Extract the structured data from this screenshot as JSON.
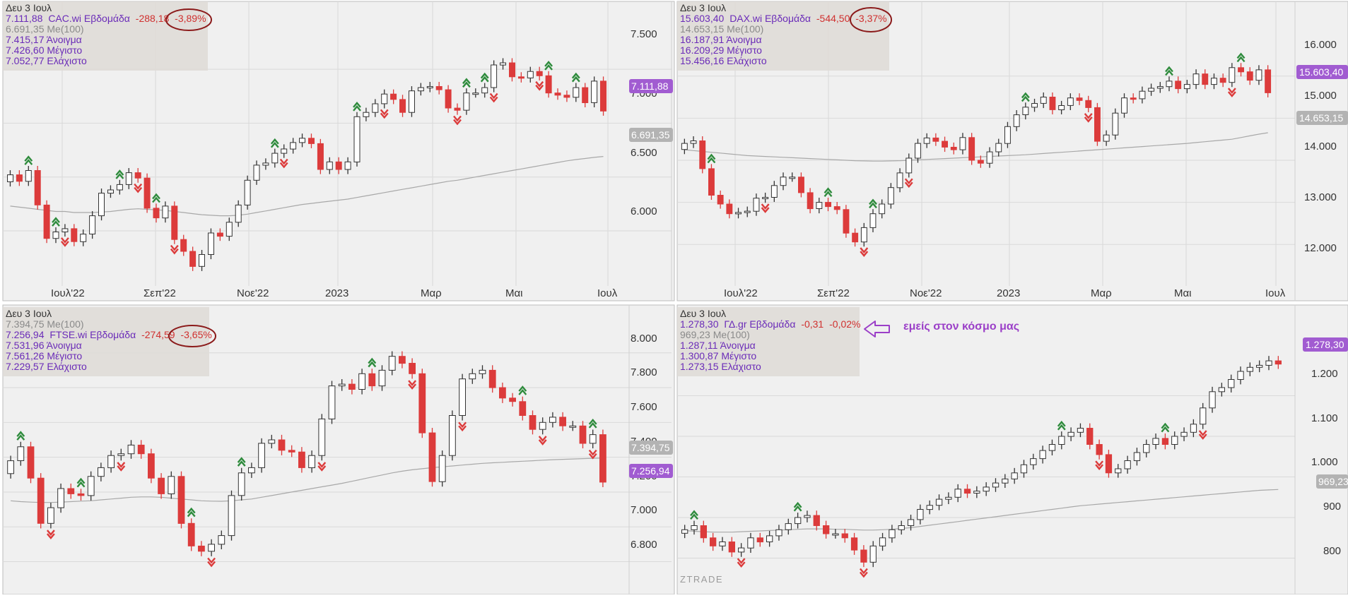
{
  "colors": {
    "background": "#f0f0f0",
    "panel_border": "#bdbdbd",
    "grid": "#d9d9d9",
    "bull": "#ffffff",
    "bear": "#dc3b3b",
    "wick": "#333333",
    "ma_line": "#a8a8a8",
    "price_badge": "#a15cd1",
    "ma_badge": "#b3b3b3",
    "info_text": "#6a2bb8",
    "change_text": "#d0302f",
    "ma_text": "#8a8a8a",
    "circle": "#8b1a1a",
    "signal_up": "#2e8b3c",
    "signal_down": "#dc3b3b",
    "annotation": "#9b3fc8",
    "axis_text": "#333333"
  },
  "xaxis_labels": [
    "Ιουλ'22",
    "Σεπ'22",
    "Νοε'22",
    "2023",
    "Μαρ",
    "Μαι",
    "Ιουλ"
  ],
  "watermark": "ZTRADE",
  "annotation": {
    "text": "εμείς στον κόσμο μας",
    "icon": "arrow-left-icon"
  },
  "chart_data": [
    {
      "type": "candlestick",
      "name": "CAC.wi Εβδομάδα",
      "info": {
        "date": "Δευ 3 Ιουλ",
        "line1_price": "7.111,88",
        "line1_name": "CAC.wi Εβδομάδα",
        "line1_change": "-288,18",
        "line1_pct": "-3,89%",
        "ma": "6.691,35 Me(100)",
        "open": "7.415,17 Άνοιγμα",
        "high": "7.426,60 Μέγιστο",
        "low": "7.052,77 Ελάχιστο"
      },
      "yaxis_ticks": [
        "7.500",
        "7.000",
        "6.500",
        "6.000"
      ],
      "price_badge": "7.111,88",
      "ma_badge": "6.691,35",
      "ylim": [
        5600,
        7750
      ],
      "close": [
        6520,
        6460,
        6560,
        6240,
        5930,
        5990,
        6020,
        5900,
        5970,
        6140,
        6350,
        6380,
        6430,
        6540,
        6490,
        6210,
        6120,
        6230,
        5920,
        5810,
        5670,
        5780,
        5980,
        5950,
        6080,
        6240,
        6470,
        6610,
        6630,
        6720,
        6760,
        6820,
        6860,
        6810,
        6570,
        6640,
        6570,
        6640,
        7060,
        7100,
        7180,
        7270,
        7220,
        7100,
        7300,
        7330,
        7340,
        7310,
        7140,
        7120,
        7280,
        7280,
        7330,
        7540,
        7560,
        7430,
        7420,
        7480,
        7440,
        7280,
        7260,
        7240,
        7330,
        7190,
        7390,
        7112
      ],
      "ma": [
        6230,
        6220,
        6210,
        6200,
        6190,
        6180,
        6180,
        6170,
        6170,
        6170,
        6175,
        6180,
        6190,
        6200,
        6205,
        6200,
        6195,
        6190,
        6180,
        6170,
        6160,
        6150,
        6145,
        6140,
        6140,
        6145,
        6155,
        6170,
        6185,
        6200,
        6215,
        6230,
        6245,
        6255,
        6265,
        6275,
        6285,
        6295,
        6310,
        6325,
        6340,
        6355,
        6370,
        6385,
        6400,
        6415,
        6430,
        6445,
        6460,
        6470,
        6485,
        6500,
        6515,
        6530,
        6545,
        6560,
        6575,
        6590,
        6605,
        6620,
        6635,
        6650,
        6662,
        6672,
        6682,
        6691
      ],
      "signals_up": [
        2,
        5,
        12,
        16,
        29,
        38,
        50,
        52,
        59,
        62
      ],
      "signals_down": [
        6,
        14,
        18,
        30,
        41,
        49,
        53,
        58
      ]
    },
    {
      "type": "candlestick",
      "name": "DAX.wi Εβδομάδα",
      "info": {
        "date": "Δευ 3 Ιουλ",
        "line1_price": "15.603,40",
        "line1_name": "DAX.wi Εβδομάδα",
        "line1_change": "-544,50",
        "line1_pct": "-3,37%",
        "ma": "14.653,15 Me(100)",
        "open": "16.187,91 Άνοιγμα",
        "high": "16.209,29 Μέγιστο",
        "low": "15.456,16 Ελάχιστο"
      },
      "yaxis_ticks": [
        "16.000",
        "15.000",
        "14.000",
        "13.000",
        "12.000"
      ],
      "price_badge": "15.603,40",
      "ma_badge": "14.653,15",
      "ylim": [
        11300,
        16800
      ],
      "close": [
        14400,
        14460,
        13800,
        13170,
        12960,
        12730,
        12760,
        12790,
        13100,
        13120,
        13400,
        13600,
        13600,
        13230,
        12850,
        13000,
        12900,
        12830,
        12270,
        12060,
        12400,
        12730,
        12960,
        13350,
        13700,
        14050,
        14400,
        14530,
        14450,
        14310,
        14250,
        14540,
        14000,
        13930,
        14200,
        14400,
        14800,
        15080,
        15260,
        15350,
        15500,
        15200,
        15300,
        15480,
        15420,
        15250,
        14450,
        14600,
        15120,
        15480,
        15460,
        15640,
        15710,
        15750,
        15880,
        15700,
        15800,
        16050,
        15800,
        15950,
        15850,
        16200,
        16100,
        15900,
        16148,
        15603
      ],
      "ma": [
        14250,
        14230,
        14210,
        14190,
        14170,
        14150,
        14130,
        14110,
        14100,
        14090,
        14080,
        14070,
        14060,
        14050,
        14040,
        14030,
        14020,
        14010,
        14000,
        13990,
        13985,
        13980,
        13980,
        13985,
        13990,
        14000,
        14010,
        14020,
        14030,
        14040,
        14050,
        14060,
        14070,
        14080,
        14090,
        14100,
        14110,
        14120,
        14130,
        14145,
        14160,
        14175,
        14190,
        14205,
        14220,
        14235,
        14250,
        14265,
        14280,
        14295,
        14310,
        14325,
        14340,
        14355,
        14370,
        14385,
        14400,
        14420,
        14440,
        14460,
        14480,
        14500,
        14540,
        14580,
        14620,
        14653
      ],
      "signals_up": [
        3,
        16,
        21,
        38,
        54,
        62,
        68,
        72
      ],
      "signals_down": [
        9,
        20,
        25,
        45,
        61,
        73,
        77
      ]
    },
    {
      "type": "candlestick",
      "name": "FTSE.wi Εβδομάδα",
      "info": {
        "date": "Δευ 3 Ιουλ",
        "ma": "7.394,75 Me(100)",
        "line1_price": "7.256,94",
        "line1_name": "FTSE.wi Εβδομάδα",
        "line1_change": "-274,59",
        "line1_pct": "-3,65%",
        "open": "7.531,96 Άνοιγμα",
        "high": "7.561,26 Μέγιστο",
        "low": "7.229,57 Ελάχιστο"
      },
      "yaxis_ticks": [
        "8.000",
        "7.800",
        "7.600",
        "7.400",
        "7.200",
        "7.000",
        "6.800"
      ],
      "price_badge": "7.256,94",
      "ma_badge": "7.394,75",
      "ylim": [
        6640,
        8080
      ],
      "close": [
        7380,
        7460,
        7280,
        7020,
        7110,
        7220,
        7190,
        7180,
        7290,
        7340,
        7410,
        7420,
        7470,
        7420,
        7280,
        7190,
        7290,
        7020,
        6890,
        6860,
        6900,
        6950,
        7180,
        7310,
        7340,
        7480,
        7500,
        7440,
        7430,
        7340,
        7410,
        7620,
        7810,
        7820,
        7790,
        7880,
        7810,
        7900,
        7980,
        7940,
        7880,
        7540,
        7260,
        7410,
        7640,
        7850,
        7880,
        7900,
        7800,
        7740,
        7720,
        7640,
        7560,
        7600,
        7630,
        7580,
        7580,
        7480,
        7530,
        7257
      ],
      "ma": [
        7150,
        7145,
        7142,
        7140,
        7140,
        7142,
        7145,
        7148,
        7150,
        7155,
        7160,
        7165,
        7170,
        7172,
        7172,
        7170,
        7165,
        7160,
        7155,
        7150,
        7148,
        7147,
        7150,
        7155,
        7160,
        7170,
        7180,
        7190,
        7200,
        7210,
        7220,
        7230,
        7240,
        7250,
        7262,
        7274,
        7286,
        7298,
        7310,
        7320,
        7328,
        7334,
        7340,
        7345,
        7350,
        7355,
        7360,
        7365,
        7368,
        7371,
        7374,
        7377,
        7380,
        7383,
        7386,
        7388,
        7390,
        7392,
        7394,
        7395
      ],
      "signals_up": [
        1,
        7,
        18,
        23,
        36,
        51,
        58
      ],
      "signals_down": [
        4,
        11,
        20,
        31,
        40,
        45,
        53,
        58
      ]
    },
    {
      "type": "candlestick",
      "name": "ΓΔ.gr Εβδομάδα",
      "info": {
        "date": "Δευ 3 Ιουλ",
        "line1_price": "1.278,30",
        "line1_name": "ΓΔ.gr Εβδομάδα",
        "line1_change": "-0,31",
        "line1_pct": "-0,02%",
        "ma": "969,23 Me(100)",
        "open": "1.287,11 Άνοιγμα",
        "high": "1.300,87 Μέγιστο",
        "low": "1.273,15 Ελάχιστο"
      },
      "yaxis_ticks": [
        "1.200",
        "1.100",
        "1.000",
        "900",
        "800"
      ],
      "price_badge": "1.278,30",
      "ma_badge": "969,23",
      "ylim": [
        740,
        1340
      ],
      "close": [
        870,
        880,
        850,
        830,
        840,
        815,
        825,
        850,
        840,
        855,
        870,
        885,
        900,
        905,
        880,
        860,
        860,
        850,
        820,
        790,
        830,
        850,
        870,
        880,
        895,
        920,
        930,
        945,
        950,
        970,
        960,
        965,
        975,
        985,
        995,
        1010,
        1030,
        1045,
        1065,
        1080,
        1100,
        1110,
        1120,
        1080,
        1055,
        1010,
        1020,
        1040,
        1060,
        1080,
        1095,
        1080,
        1100,
        1110,
        1130,
        1170,
        1210,
        1220,
        1240,
        1260,
        1270,
        1275,
        1286,
        1278
      ],
      "ma": [
        868,
        866,
        865,
        864,
        864,
        864,
        865,
        866,
        867,
        868,
        869,
        870,
        871,
        872,
        872,
        872,
        871,
        871,
        870,
        869,
        869,
        870,
        871,
        873,
        875,
        878,
        881,
        884,
        887,
        890,
        893,
        896,
        899,
        902,
        905,
        908,
        911,
        914,
        917,
        920,
        923,
        926,
        929,
        931,
        933,
        935,
        937,
        939,
        941,
        943,
        945,
        947,
        949,
        951,
        953,
        955,
        957,
        959,
        961,
        963,
        965,
        967,
        968,
        969
      ],
      "signals_up": [
        1,
        12,
        40,
        51
      ],
      "signals_down": [
        6,
        19,
        44,
        55
      ]
    }
  ]
}
